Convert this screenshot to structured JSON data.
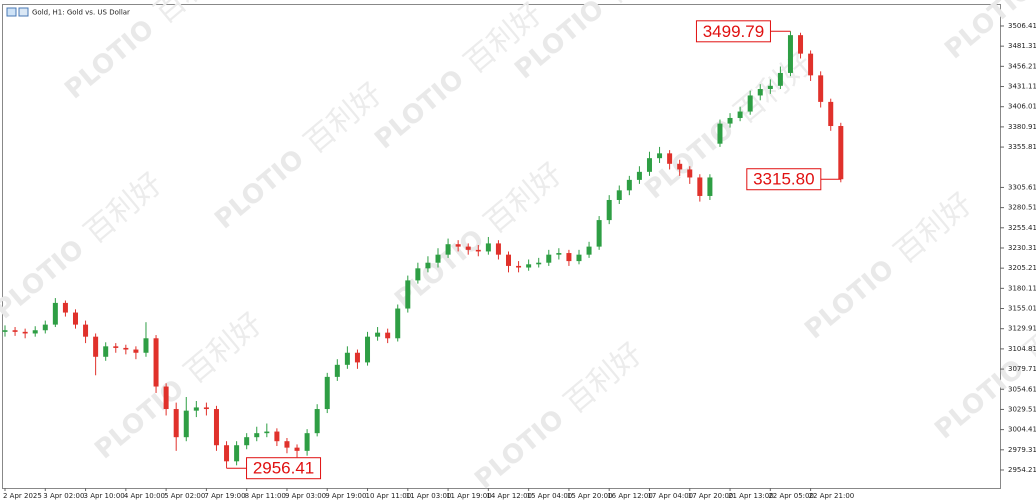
{
  "chart_data": {
    "type": "candlestick",
    "title": "Gold, H1:  Gold vs. US Dollar",
    "watermark": {
      "logo": "PLOTIO",
      "text": "百利好"
    },
    "up_color": "#2e9e44",
    "down_color": "#e0312b",
    "categories": [
      "2 Apr 2025",
      null,
      null,
      null,
      "3 Apr 02:00",
      null,
      null,
      null,
      "3 Apr 10:00",
      null,
      null,
      null,
      "4 Apr 10:00",
      null,
      null,
      null,
      "5 Apr 02:00",
      null,
      null,
      null,
      "7 Apr 19:00",
      null,
      null,
      null,
      "8 Apr 11:00",
      null,
      null,
      null,
      "9 Apr 03:00",
      null,
      null,
      null,
      "9 Apr 19:00",
      null,
      null,
      null,
      "10 Apr 11:00",
      null,
      null,
      null,
      "11 Apr 03:00",
      null,
      null,
      null,
      "11 Apr 19:00",
      null,
      null,
      null,
      "14 Apr 12:00",
      null,
      null,
      null,
      "15 Apr 04:00",
      null,
      null,
      null,
      "15 Apr 20:00",
      null,
      null,
      null,
      "16 Apr 12:00",
      null,
      null,
      null,
      "17 Apr 04:00",
      null,
      null,
      null,
      "17 Apr 20:00",
      null,
      null,
      null,
      "21 Apr 13:00",
      null,
      null,
      null,
      "22 Apr 05:00",
      null,
      null,
      null,
      "22 Apr 21:00",
      null,
      null,
      null
    ],
    "open": [
      3126,
      3128,
      3126,
      3124,
      3128,
      3135,
      3162,
      3150,
      3135,
      3120,
      3095,
      3108,
      3106,
      3104,
      3100,
      3118,
      3058,
      3030,
      2995,
      3028,
      3032,
      3030,
      2985,
      2965,
      2985,
      2995,
      3000,
      3002,
      2990,
      2982,
      2978,
      3000,
      3030,
      3070,
      3085,
      3100,
      3088,
      3120,
      3125,
      3118,
      3155,
      3190,
      3205,
      3212,
      3222,
      3235,
      3232,
      3228,
      3226,
      3236,
      3222,
      3208,
      3206,
      3210,
      3212,
      3222,
      3224,
      3214,
      3222,
      3232,
      3265,
      3290,
      3302,
      3315,
      3325,
      3342,
      3348,
      3335,
      3328,
      3318,
      3295,
      3360,
      3385,
      3392,
      3400,
      3420,
      3428,
      3432,
      3448,
      3495,
      3472,
      3445,
      3412,
      3382
    ],
    "high": [
      3134,
      3132,
      3130,
      3133,
      3140,
      3168,
      3165,
      3154,
      3140,
      3124,
      3113,
      3112,
      3110,
      3108,
      3138,
      3122,
      3062,
      3038,
      3045,
      3040,
      3038,
      3034,
      2990,
      2990,
      3000,
      3008,
      3012,
      3006,
      2994,
      2986,
      3005,
      3036,
      3075,
      3092,
      3108,
      3104,
      3126,
      3132,
      3130,
      3160,
      3196,
      3212,
      3220,
      3230,
      3242,
      3240,
      3236,
      3234,
      3244,
      3240,
      3226,
      3214,
      3216,
      3218,
      3228,
      3230,
      3228,
      3228,
      3238,
      3270,
      3296,
      3308,
      3320,
      3332,
      3350,
      3356,
      3352,
      3340,
      3332,
      3322,
      3322,
      3390,
      3398,
      3406,
      3426,
      3434,
      3440,
      3456,
      3499.79,
      3498,
      3476,
      3450,
      3416,
      3386
    ],
    "low": [
      3120,
      3121,
      3118,
      3120,
      3124,
      3132,
      3145,
      3130,
      3112,
      3072,
      3090,
      3100,
      3098,
      3092,
      3095,
      3050,
      3022,
      2978,
      2990,
      3020,
      3022,
      2978,
      2956.41,
      2960,
      2980,
      2990,
      2995,
      2984,
      2975,
      2970,
      2972,
      2996,
      3025,
      3065,
      3080,
      3080,
      3084,
      3115,
      3112,
      3114,
      3150,
      3186,
      3200,
      3206,
      3218,
      3226,
      3222,
      3220,
      3222,
      3216,
      3200,
      3200,
      3202,
      3206,
      3208,
      3216,
      3208,
      3210,
      3218,
      3228,
      3260,
      3285,
      3296,
      3310,
      3320,
      3336,
      3328,
      3320,
      3310,
      3288,
      3290,
      3356,
      3380,
      3388,
      3396,
      3414,
      3422,
      3428,
      3444,
      3466,
      3438,
      3405,
      3376,
      3312
    ],
    "close": [
      3128,
      3126,
      3124,
      3128,
      3135,
      3162,
      3150,
      3135,
      3120,
      3095,
      3108,
      3106,
      3104,
      3100,
      3118,
      3058,
      3030,
      2995,
      3028,
      3032,
      3030,
      2985,
      2965,
      2985,
      2995,
      3000,
      3002,
      2990,
      2982,
      2978,
      3000,
      3030,
      3070,
      3085,
      3100,
      3088,
      3120,
      3125,
      3118,
      3155,
      3190,
      3205,
      3212,
      3222,
      3235,
      3232,
      3228,
      3226,
      3236,
      3222,
      3208,
      3206,
      3210,
      3212,
      3222,
      3224,
      3214,
      3222,
      3232,
      3265,
      3290,
      3302,
      3315,
      3325,
      3342,
      3348,
      3335,
      3328,
      3318,
      3295,
      3318,
      3385,
      3392,
      3400,
      3420,
      3428,
      3432,
      3448,
      3495,
      3472,
      3445,
      3412,
      3382,
      3315.8
    ],
    "price_labels": [
      {
        "value": 3499.79,
        "label": "3499.79"
      },
      {
        "value": 3315.8,
        "label": "3315.80"
      },
      {
        "value": 2956.41,
        "label": "2956.41"
      }
    ],
    "ylim": [
      2931.8,
      3532.5
    ],
    "yticks": [
      3506.41,
      3481.31,
      3456.21,
      3431.11,
      3406.01,
      3380.91,
      3355.81,
      3305.61,
      3280.51,
      3255.41,
      3230.31,
      3205.21,
      3180.11,
      3155.01,
      3129.91,
      3104.81,
      3079.71,
      3054.61,
      3029.51,
      3004.41,
      2979.31,
      2954.21
    ]
  }
}
